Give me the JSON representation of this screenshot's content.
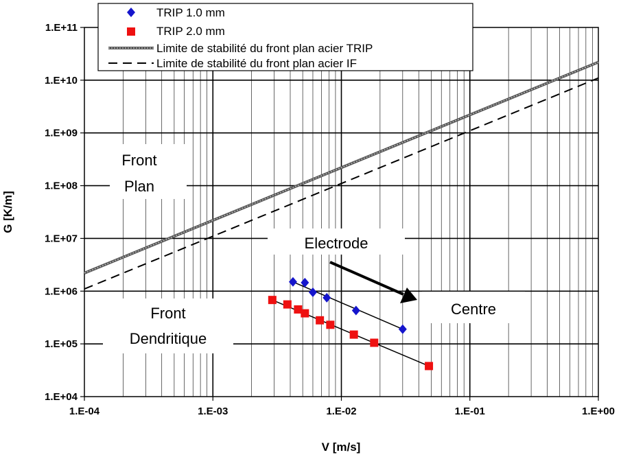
{
  "chart_data": {
    "type": "scatter",
    "xlabel": "V [m/s]",
    "ylabel": "G [K/m]",
    "x_scale": "log",
    "y_scale": "log",
    "xlim": [
      0.0001,
      1.0
    ],
    "ylim": [
      10000,
      100000000000
    ],
    "x_tick_labels": [
      "1.E-04",
      "1.E-03",
      "1.E-02",
      "1.E-01",
      "1.E+00"
    ],
    "y_tick_labels": [
      "1.E+04",
      "1.E+05",
      "1.E+06",
      "1.E+07",
      "1.E+08",
      "1.E+09",
      "1.E+10",
      "1.E+11"
    ],
    "grid": true,
    "legend_position": "top",
    "series": [
      {
        "name": "TRIP 1.0 mm",
        "kind": "scatter",
        "marker": "diamond",
        "color": "#1515cc",
        "x": [
          0.0042,
          0.0052,
          0.006,
          0.0077,
          0.013,
          0.03
        ],
        "y": [
          1500000,
          1450000,
          950000,
          750000,
          430000,
          190000
        ]
      },
      {
        "name": "TRIP 2.0 mm",
        "kind": "scatter",
        "marker": "square",
        "color": "#ee1111",
        "x": [
          0.0029,
          0.0038,
          0.0046,
          0.0052,
          0.0068,
          0.0082,
          0.0125,
          0.018,
          0.048
        ],
        "y": [
          680000,
          560000,
          450000,
          380000,
          280000,
          230000,
          150000,
          105000,
          38000
        ]
      },
      {
        "name": "Limite de stabilité du front plan acier TRIP",
        "kind": "line",
        "style": "thick-gray",
        "color": "#555555",
        "x": [
          0.0001,
          1.0
        ],
        "y": [
          2200000,
          22000000000
        ]
      },
      {
        "name": "Limite de stabilité du front plan acier IF",
        "kind": "line",
        "style": "dashed",
        "color": "#000000",
        "x": [
          0.0001,
          1.0
        ],
        "y": [
          1100000,
          11000000000
        ]
      }
    ],
    "trendlines": [
      {
        "x": [
          0.0042,
          0.03
        ],
        "y": [
          1500000,
          190000
        ]
      },
      {
        "x": [
          0.0029,
          0.048
        ],
        "y": [
          680000,
          38000
        ]
      }
    ],
    "annotations": {
      "front_plan": [
        "Front",
        "Plan"
      ],
      "front_dendritique": [
        "Front",
        "Dendritique"
      ],
      "electrode": "Electrode",
      "centre": "Centre"
    }
  }
}
